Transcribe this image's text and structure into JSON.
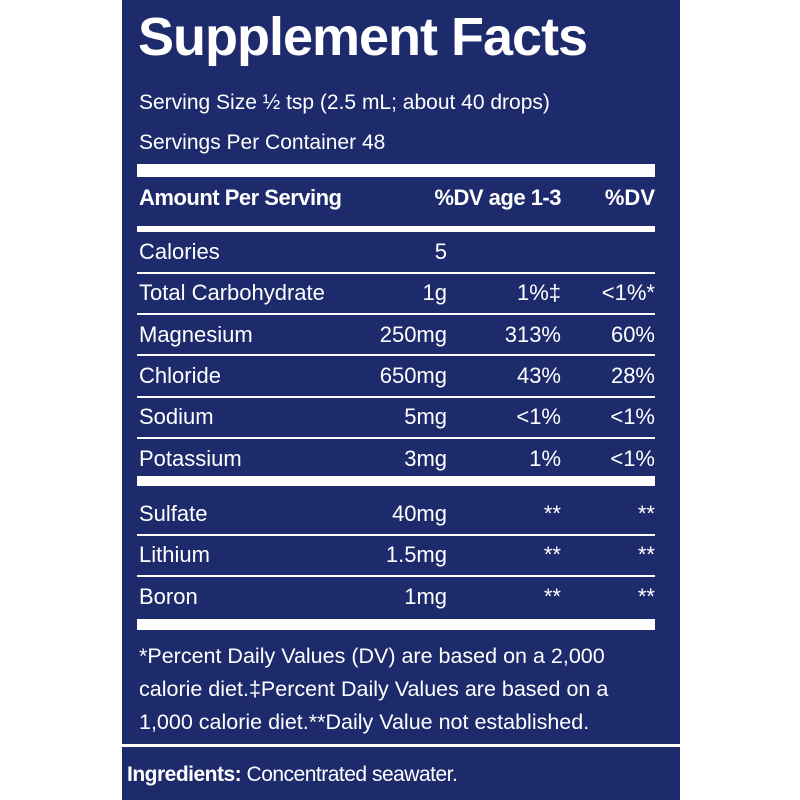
{
  "header": {
    "title": "Supplement Facts",
    "serving_size": "Serving Size ½ tsp (2.5 mL; about 40 drops)",
    "servings_per_container": "Servings Per Container 48"
  },
  "table": {
    "columns": [
      "Amount Per Serving",
      "%DV age 1-3",
      "%DV"
    ],
    "sections": [
      [
        [
          "Calories",
          "5",
          null,
          null
        ],
        [
          "Total Carbohydrate",
          "1g",
          "1%‡",
          "<1%*"
        ],
        [
          "Magnesium",
          "250mg",
          "313%",
          "60%"
        ],
        [
          "Chloride",
          "650mg",
          "43%",
          "28%"
        ],
        [
          "Sodium",
          "5mg",
          "<1%",
          "<1%"
        ],
        [
          "Potassium",
          "3mg",
          "1%",
          "<1%"
        ]
      ],
      [
        [
          "Sulfate",
          "40mg",
          "**",
          "**"
        ],
        [
          "Lithium",
          "1.5mg",
          "**",
          "**"
        ],
        [
          "Boron",
          "1mg",
          "**",
          "**"
        ]
      ]
    ]
  },
  "footnote": "*Percent Daily Values (DV) are based on a 2,000 calorie diet.‡Percent Daily Values are based on a 1,000 calorie diet.**Daily Value not established.",
  "ingredients": {
    "label": "Ingredients:",
    "text": "Concentrated seawater."
  }
}
